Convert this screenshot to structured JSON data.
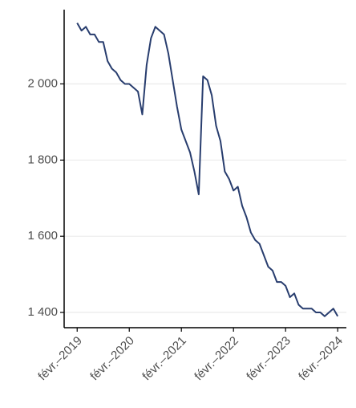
{
  "chart_data": {
    "type": "line",
    "x": [
      "2019-02",
      "2019-03",
      "2019-04",
      "2019-05",
      "2019-06",
      "2019-07",
      "2019-08",
      "2019-09",
      "2019-10",
      "2019-11",
      "2019-12",
      "2020-01",
      "2020-02",
      "2020-03",
      "2020-04",
      "2020-05",
      "2020-06",
      "2020-07",
      "2020-08",
      "2020-09",
      "2020-10",
      "2020-11",
      "2020-12",
      "2021-01",
      "2021-02",
      "2021-03",
      "2021-04",
      "2021-05",
      "2021-06",
      "2021-07",
      "2021-08",
      "2021-09",
      "2021-10",
      "2021-11",
      "2021-12",
      "2022-01",
      "2022-02",
      "2022-03",
      "2022-04",
      "2022-05",
      "2022-06",
      "2022-07",
      "2022-08",
      "2022-09",
      "2022-10",
      "2022-11",
      "2022-12",
      "2023-01",
      "2023-02",
      "2023-03",
      "2023-04",
      "2023-05",
      "2023-06",
      "2023-07",
      "2023-08",
      "2023-09",
      "2023-10",
      "2023-11",
      "2023-12",
      "2024-01",
      "2024-02"
    ],
    "series": [
      {
        "color": "#283d6e",
        "values": [
          2160,
          2140,
          2150,
          2130,
          2130,
          2110,
          2110,
          2060,
          2040,
          2030,
          2010,
          2000,
          2000,
          1990,
          1980,
          1920,
          2050,
          2120,
          2150,
          2140,
          2130,
          2080,
          2010,
          1940,
          1880,
          1850,
          1820,
          1770,
          1710,
          2020,
          2010,
          1970,
          1890,
          1850,
          1770,
          1750,
          1720,
          1730,
          1680,
          1650,
          1610,
          1590,
          1580,
          1550,
          1520,
          1510,
          1480,
          1480,
          1470,
          1440,
          1450,
          1420,
          1410,
          1410,
          1410,
          1400,
          1400,
          1390,
          1400,
          1410,
          1390
        ]
      }
    ],
    "xlim": [
      "2018-11",
      "2024-04"
    ],
    "xticks": [
      {
        "value": "2019-02",
        "label": "févr.–2019"
      },
      {
        "value": "2020-02",
        "label": "févr.–2020"
      },
      {
        "value": "2021-02",
        "label": "févr.–2021"
      },
      {
        "value": "2022-02",
        "label": "févr.–2022"
      },
      {
        "value": "2023-02",
        "label": "févr.–2023"
      },
      {
        "value": "2024-02",
        "label": "févr.–2024"
      }
    ],
    "ylim": [
      1360,
      2195
    ],
    "yticks": [
      {
        "value": 1400,
        "label": "1 400"
      },
      {
        "value": 1600,
        "label": "1 600"
      },
      {
        "value": 1800,
        "label": "1 800"
      },
      {
        "value": 2000,
        "label": "2 000"
      }
    ],
    "grid": true
  }
}
